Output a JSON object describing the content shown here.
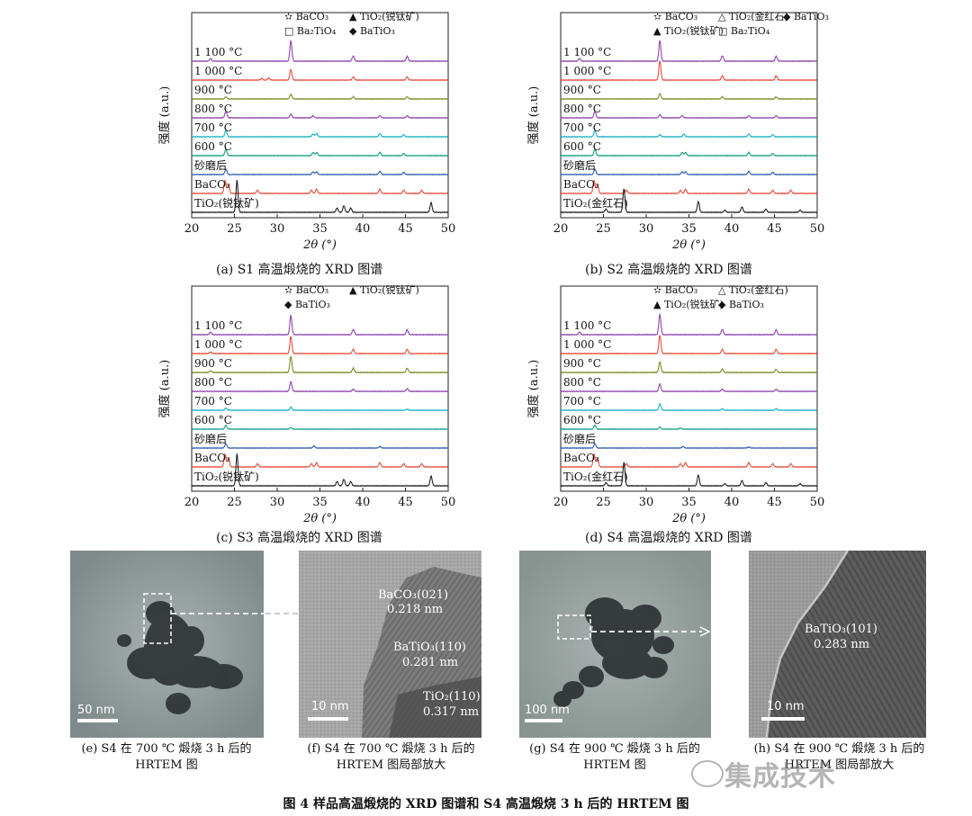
{
  "figure_caption": "图 4   样品高温煅烧的 XRD 图谱和 S4 高温煅烧 3 h 后的 HRTEM 图",
  "watermark": "集成技术",
  "chart_data": [
    {
      "type": "line",
      "id": "a",
      "caption": "(a) S1 高温煅烧的 XRD 图谱",
      "xlabel": "2θ (°)",
      "ylabel": "强度 (a.u.)",
      "xlim": [
        20,
        50
      ],
      "xticks": [
        20,
        25,
        30,
        35,
        40,
        45,
        50
      ],
      "legend": [
        "✫ BaCO₃",
        "▲ TiO₂(锐钛矿)",
        "□ Ba₂TiO₄",
        "◆ BaTiO₃"
      ],
      "series": [
        {
          "name": "1 100 °C",
          "color": "#8e44ad",
          "peaks": [
            [
              22.2,
              0.25
            ],
            [
              31.6,
              1.9
            ],
            [
              38.9,
              0.5
            ],
            [
              45.2,
              0.45
            ]
          ]
        },
        {
          "name": "1 000 °C",
          "color": "#e74c3c",
          "peaks": [
            [
              28.2,
              0.15
            ],
            [
              29.0,
              0.2
            ],
            [
              31.6,
              1.0
            ],
            [
              38.9,
              0.3
            ],
            [
              45.2,
              0.3
            ]
          ]
        },
        {
          "name": "900 °C",
          "color": "#7d8a26",
          "peaks": [
            [
              24.0,
              0.2
            ],
            [
              31.6,
              0.45
            ],
            [
              38.9,
              0.2
            ],
            [
              45.2,
              0.2
            ]
          ]
        },
        {
          "name": "800 °C",
          "color": "#8e44ad",
          "peaks": [
            [
              24.0,
              0.6
            ],
            [
              31.6,
              0.35
            ],
            [
              34.2,
              0.2
            ],
            [
              42.0,
              0.2
            ],
            [
              45.2,
              0.2
            ]
          ]
        },
        {
          "name": "700 °C",
          "color": "#17b3c1",
          "peaks": [
            [
              24.0,
              0.6
            ],
            [
              34.2,
              0.25
            ],
            [
              34.6,
              0.3
            ],
            [
              42.0,
              0.3
            ],
            [
              44.8,
              0.2
            ]
          ]
        },
        {
          "name": "600 °C",
          "color": "#16a085",
          "peaks": [
            [
              24.0,
              0.6
            ],
            [
              34.2,
              0.3
            ],
            [
              34.6,
              0.3
            ],
            [
              42.0,
              0.3
            ],
            [
              44.8,
              0.2
            ]
          ]
        },
        {
          "name": "砂磨后",
          "color": "#2c5fad",
          "peaks": [
            [
              24.0,
              0.5
            ],
            [
              34.2,
              0.25
            ],
            [
              34.6,
              0.25
            ],
            [
              42.0,
              0.3
            ],
            [
              44.8,
              0.2
            ]
          ]
        },
        {
          "name": "BaCO₃",
          "color": "#e74c3c",
          "peaks": [
            [
              23.9,
              1.2
            ],
            [
              24.3,
              0.8
            ],
            [
              27.7,
              0.3
            ],
            [
              34.0,
              0.3
            ],
            [
              34.6,
              0.4
            ],
            [
              42.0,
              0.4
            ],
            [
              44.8,
              0.3
            ],
            [
              46.9,
              0.3
            ]
          ]
        },
        {
          "name": "TiO₂(锐钛矿)",
          "color": "#222222",
          "peaks": [
            [
              25.3,
              3.0
            ],
            [
              37.0,
              0.4
            ],
            [
              37.8,
              0.6
            ],
            [
              38.6,
              0.4
            ],
            [
              48.0,
              0.9
            ]
          ]
        }
      ]
    },
    {
      "type": "line",
      "id": "b",
      "caption": "(b) S2 高温煅烧的 XRD 图谱",
      "xlabel": "2θ (°)",
      "ylabel": "强度 (a.u.)",
      "xlim": [
        20,
        50
      ],
      "xticks": [
        20,
        25,
        30,
        35,
        40,
        45,
        50
      ],
      "legend": [
        "✫ BaCO₃",
        "△ TiO₂(金红石)",
        "◆ BaTiO₃",
        "▲ TiO₂(锐钛矿)",
        "□ Ba₂TiO₄"
      ],
      "series": [
        {
          "name": "1 100 °C",
          "color": "#8e44ad",
          "peaks": [
            [
              22.2,
              0.25
            ],
            [
              31.6,
              1.9
            ],
            [
              38.9,
              0.5
            ],
            [
              45.2,
              0.45
            ]
          ]
        },
        {
          "name": "1 000 °C",
          "color": "#e74c3c",
          "peaks": [
            [
              31.6,
              1.8
            ],
            [
              38.9,
              0.4
            ],
            [
              45.2,
              0.4
            ]
          ]
        },
        {
          "name": "900 °C",
          "color": "#7d8a26",
          "peaks": [
            [
              31.6,
              0.5
            ],
            [
              38.9,
              0.2
            ],
            [
              45.2,
              0.2
            ]
          ]
        },
        {
          "name": "800 °C",
          "color": "#8e44ad",
          "peaks": [
            [
              24.0,
              0.6
            ],
            [
              31.6,
              0.3
            ],
            [
              34.2,
              0.2
            ],
            [
              42.0,
              0.2
            ],
            [
              45.2,
              0.2
            ]
          ]
        },
        {
          "name": "700 °C",
          "color": "#17b3c1",
          "peaks": [
            [
              24.0,
              0.6
            ],
            [
              31.6,
              0.2
            ],
            [
              34.4,
              0.25
            ],
            [
              42.0,
              0.25
            ],
            [
              44.8,
              0.2
            ]
          ]
        },
        {
          "name": "600 °C",
          "color": "#16a085",
          "peaks": [
            [
              24.0,
              0.6
            ],
            [
              34.2,
              0.3
            ],
            [
              34.6,
              0.3
            ],
            [
              42.0,
              0.3
            ],
            [
              44.8,
              0.2
            ]
          ]
        },
        {
          "name": "砂磨后",
          "color": "#2c5fad",
          "peaks": [
            [
              24.0,
              0.5
            ],
            [
              34.2,
              0.25
            ],
            [
              34.6,
              0.25
            ],
            [
              42.0,
              0.3
            ],
            [
              44.8,
              0.2
            ]
          ]
        },
        {
          "name": "BaCO₃",
          "color": "#e74c3c",
          "peaks": [
            [
              23.9,
              1.2
            ],
            [
              24.3,
              0.8
            ],
            [
              27.7,
              0.3
            ],
            [
              34.0,
              0.3
            ],
            [
              34.6,
              0.4
            ],
            [
              42.0,
              0.4
            ],
            [
              44.8,
              0.3
            ],
            [
              46.9,
              0.3
            ]
          ]
        },
        {
          "name": "TiO₂(金红石)",
          "color": "#222222",
          "peaks": [
            [
              25.3,
              0.3
            ],
            [
              27.4,
              2.2
            ],
            [
              36.1,
              1.0
            ],
            [
              39.2,
              0.2
            ],
            [
              41.2,
              0.5
            ],
            [
              44.0,
              0.3
            ],
            [
              48.0,
              0.2
            ]
          ]
        }
      ]
    },
    {
      "type": "line",
      "id": "c",
      "caption": "(c) S3 高温煅烧的 XRD 图谱",
      "xlabel": "2θ (°)",
      "ylabel": "强度 (a.u.)",
      "xlim": [
        20,
        50
      ],
      "xticks": [
        20,
        25,
        30,
        35,
        40,
        45,
        50
      ],
      "legend": [
        "✫ BaCO₃",
        "▲ TiO₂(锐钛矿)",
        "◆ BaTiO₃"
      ],
      "series": [
        {
          "name": "1 100 °C",
          "color": "#8e44ad",
          "peaks": [
            [
              22.2,
              0.25
            ],
            [
              31.6,
              1.8
            ],
            [
              38.9,
              0.5
            ],
            [
              45.2,
              0.45
            ]
          ]
        },
        {
          "name": "1 000 °C",
          "color": "#e74c3c",
          "peaks": [
            [
              22.2,
              0.15
            ],
            [
              31.6,
              1.6
            ],
            [
              38.9,
              0.4
            ],
            [
              45.2,
              0.4
            ]
          ]
        },
        {
          "name": "900 °C",
          "color": "#7d8a26",
          "peaks": [
            [
              22.2,
              0.15
            ],
            [
              31.6,
              1.5
            ],
            [
              38.9,
              0.4
            ],
            [
              45.2,
              0.4
            ]
          ]
        },
        {
          "name": "800 °C",
          "color": "#8e44ad",
          "peaks": [
            [
              31.6,
              0.9
            ],
            [
              38.9,
              0.2
            ],
            [
              45.2,
              0.25
            ]
          ]
        },
        {
          "name": "700 °C",
          "color": "#17b3c1",
          "peaks": [
            [
              24.0,
              0.2
            ],
            [
              31.6,
              0.3
            ],
            [
              45.2,
              0.1
            ]
          ]
        },
        {
          "name": "600 °C",
          "color": "#16a085",
          "peaks": [
            [
              24.0,
              0.35
            ],
            [
              31.6,
              0.15
            ]
          ]
        },
        {
          "name": "砂磨后",
          "color": "#2c5fad",
          "peaks": [
            [
              24.0,
              0.4
            ],
            [
              34.3,
              0.2
            ],
            [
              42.0,
              0.15
            ]
          ]
        },
        {
          "name": "BaCO₃",
          "color": "#e74c3c",
          "peaks": [
            [
              23.9,
              1.2
            ],
            [
              24.3,
              0.8
            ],
            [
              27.7,
              0.3
            ],
            [
              34.0,
              0.3
            ],
            [
              34.6,
              0.4
            ],
            [
              42.0,
              0.4
            ],
            [
              44.8,
              0.3
            ],
            [
              46.9,
              0.3
            ]
          ]
        },
        {
          "name": "TiO₂(锐钛矿)",
          "color": "#222222",
          "peaks": [
            [
              25.3,
              3.0
            ],
            [
              37.0,
              0.4
            ],
            [
              37.8,
              0.6
            ],
            [
              38.6,
              0.4
            ],
            [
              48.0,
              0.9
            ]
          ]
        }
      ]
    },
    {
      "type": "line",
      "id": "d",
      "caption": "(d) S4 高温煅烧的 XRD 图谱",
      "xlabel": "2θ (°)",
      "ylabel": "强度 (a.u.)",
      "xlim": [
        20,
        50
      ],
      "xticks": [
        20,
        25,
        30,
        35,
        40,
        45,
        50
      ],
      "legend": [
        "✫ BaCO₃",
        "△ TiO₂(金红石)",
        "▲ TiO₂(锐钛矿)",
        "◆ BaTiO₃"
      ],
      "series": [
        {
          "name": "1 100 °C",
          "color": "#8e44ad",
          "peaks": [
            [
              22.2,
              0.25
            ],
            [
              31.6,
              1.9
            ],
            [
              38.9,
              0.5
            ],
            [
              45.2,
              0.45
            ]
          ]
        },
        {
          "name": "1 000 °C",
          "color": "#e74c3c",
          "peaks": [
            [
              31.6,
              1.7
            ],
            [
              38.9,
              0.4
            ],
            [
              45.2,
              0.4
            ]
          ]
        },
        {
          "name": "900 °C",
          "color": "#7d8a26",
          "peaks": [
            [
              31.6,
              1.0
            ],
            [
              38.9,
              0.3
            ],
            [
              45.2,
              0.3
            ]
          ]
        },
        {
          "name": "800 °C",
          "color": "#8e44ad",
          "peaks": [
            [
              31.6,
              0.7
            ],
            [
              38.9,
              0.2
            ],
            [
              45.2,
              0.2
            ]
          ]
        },
        {
          "name": "700 °C",
          "color": "#17b3c1",
          "peaks": [
            [
              31.6,
              0.6
            ],
            [
              38.9,
              0.15
            ],
            [
              45.2,
              0.15
            ]
          ]
        },
        {
          "name": "600 °C",
          "color": "#16a085",
          "peaks": [
            [
              24.0,
              0.35
            ],
            [
              31.6,
              0.2
            ],
            [
              34.0,
              0.1
            ]
          ]
        },
        {
          "name": "砂磨后",
          "color": "#2c5fad",
          "peaks": [
            [
              24.0,
              0.4
            ],
            [
              34.3,
              0.15
            ],
            [
              42.0,
              0.1
            ]
          ]
        },
        {
          "name": "BaCO₃",
          "color": "#e74c3c",
          "peaks": [
            [
              23.9,
              1.2
            ],
            [
              24.3,
              0.8
            ],
            [
              27.7,
              0.3
            ],
            [
              34.0,
              0.3
            ],
            [
              34.6,
              0.4
            ],
            [
              42.0,
              0.4
            ],
            [
              44.8,
              0.3
            ],
            [
              46.9,
              0.3
            ]
          ]
        },
        {
          "name": "TiO₂(金红石)",
          "color": "#222222",
          "peaks": [
            [
              25.3,
              0.3
            ],
            [
              27.4,
              2.2
            ],
            [
              36.1,
              1.0
            ],
            [
              39.2,
              0.2
            ],
            [
              41.2,
              0.5
            ],
            [
              44.0,
              0.3
            ],
            [
              48.0,
              0.2
            ]
          ]
        }
      ]
    }
  ],
  "tem_panels": [
    {
      "id": "e",
      "caption": "(e) S4 在 700 ℃ 煅烧 3 h 后的 HRTEM 图",
      "scale_bar": "50 nm",
      "annotations": []
    },
    {
      "id": "f",
      "caption": "(f) S4 在 700 ℃ 煅烧 3 h 后的 HRTEM 图局部放大",
      "scale_bar": "10 nm",
      "annotations": [
        "BaCO₃(021)",
        "0.218 nm",
        "BaTiO₃(110)",
        "0.281 nm",
        "TiO₂(110)",
        "0.317 nm"
      ]
    },
    {
      "id": "g",
      "caption": "(g) S4 在 900 ℃ 煅烧 3 h 后的 HRTEM 图",
      "scale_bar": "100 nm",
      "annotations": []
    },
    {
      "id": "h",
      "caption": "(h) S4 在 900 ℃ 煅烧 3 h 后的 HRTEM 图局部放大",
      "scale_bar": "10 nm",
      "annotations": [
        "BaTiO₃(101)",
        "0.283 nm"
      ]
    }
  ]
}
